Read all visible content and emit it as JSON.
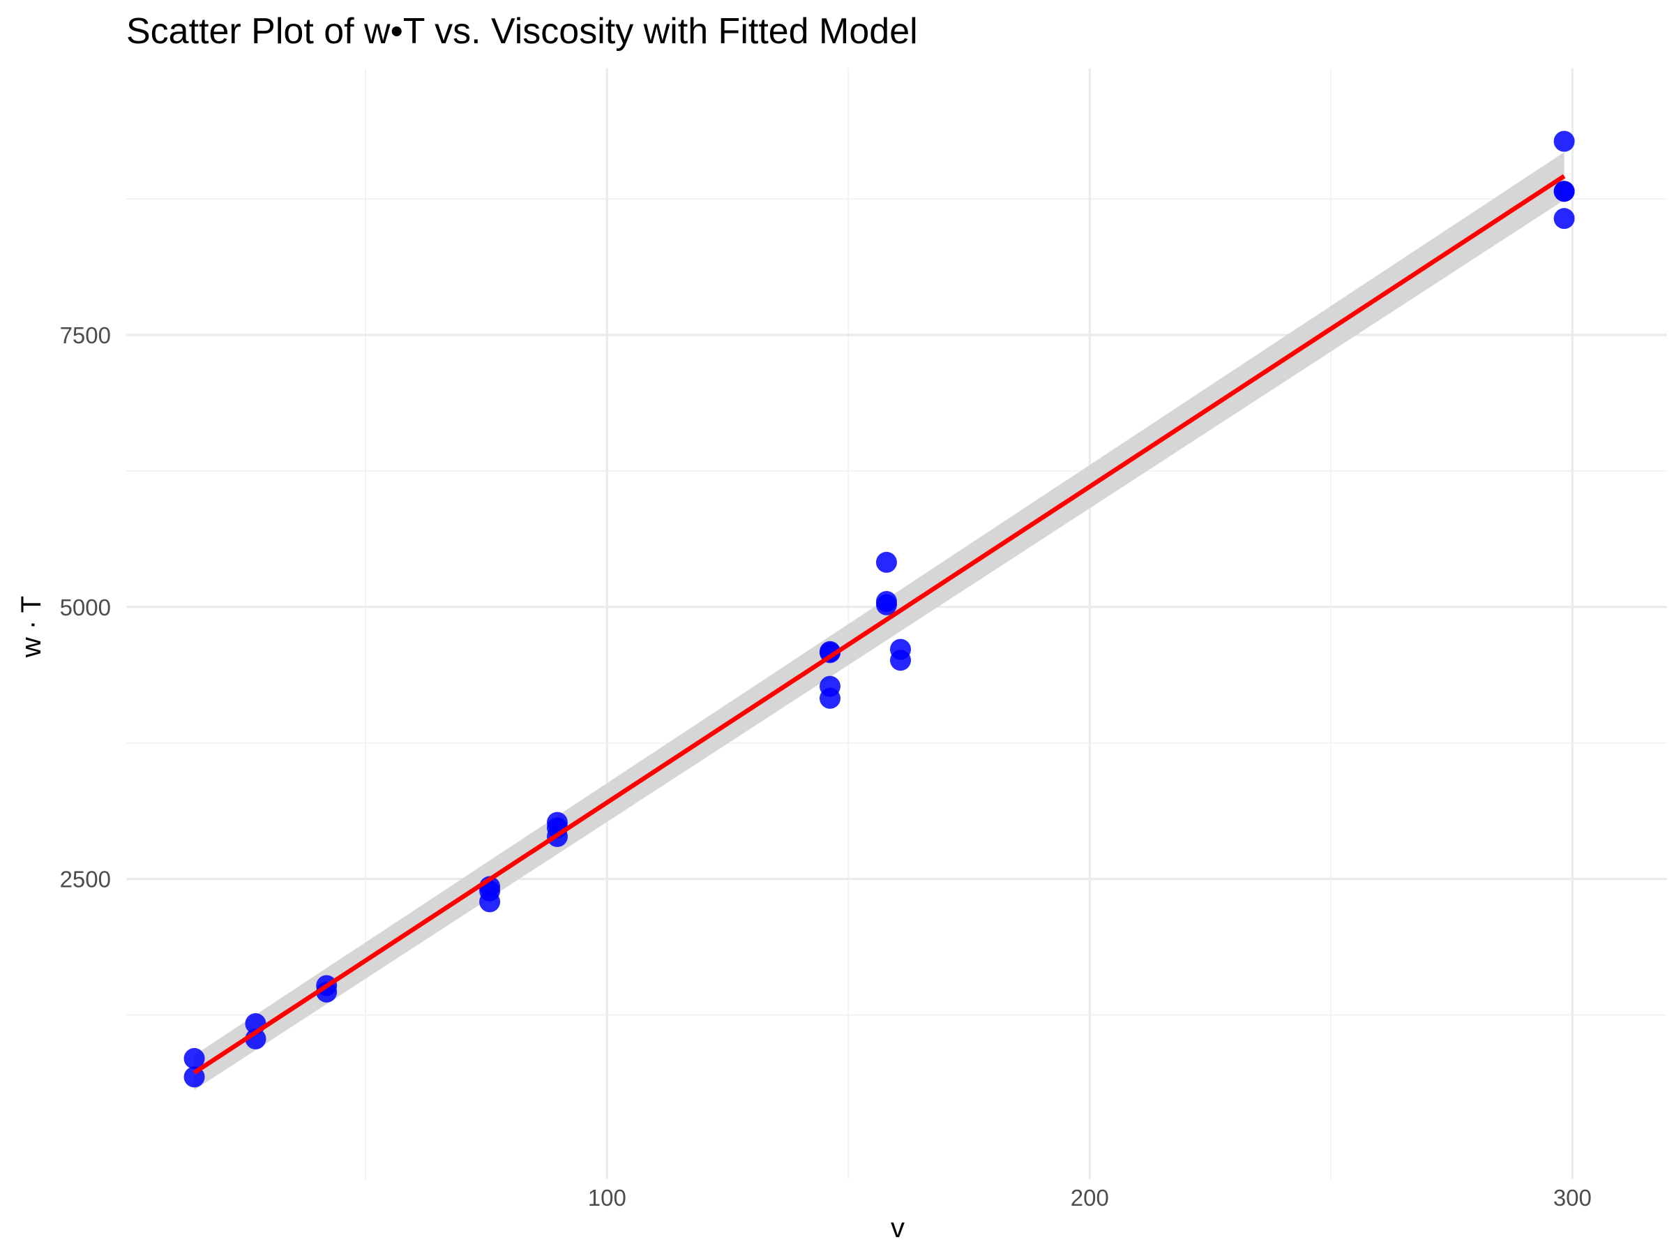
{
  "chart_data": {
    "type": "scatter",
    "title": "Scatter Plot of w•T vs. Viscosity with Fitted Model",
    "xlabel": "v",
    "ylabel": "w · T",
    "xlim": [
      0.4,
      319.6
    ],
    "ylim": [
      -260,
      9950
    ],
    "x_ticks": [
      100,
      200,
      300
    ],
    "x_tick_labels": [
      "100",
      "200",
      "300"
    ],
    "x_minor_ticks": [
      50,
      150,
      250
    ],
    "y_ticks": [
      2500,
      5000,
      7500
    ],
    "y_tick_labels": [
      "2500",
      "5000",
      "7500"
    ],
    "y_minor_ticks": [
      1250,
      3750,
      6250,
      8750
    ],
    "grid": true,
    "legend": "none",
    "series": [
      {
        "kind": "points",
        "color": "#0000ff",
        "x": [
          14.5,
          14.5,
          27.2,
          27.2,
          41.9,
          41.9,
          75.7,
          75.7,
          75.7,
          89.7,
          89.7,
          89.7,
          146.2,
          146.2,
          146.2,
          146.2,
          157.9,
          157.9,
          157.9,
          160.8,
          160.8,
          298.3,
          298.3,
          298.3,
          298.3
        ],
        "y": [
          850,
          680,
          1170,
          1030,
          1520,
          1460,
          2430,
          2390,
          2290,
          3020,
          2970,
          2890,
          4580,
          4270,
          4160,
          4590,
          5410,
          5050,
          5020,
          4610,
          4510,
          9280,
          8820,
          8820,
          8570
        ]
      },
      {
        "kind": "fitted-line",
        "color": "#ff0000",
        "band_color": "#d6d6d6",
        "x": [
          14.5,
          298.3
        ],
        "y": [
          720,
          8960
        ],
        "band_lower": [
          560,
          8740
        ],
        "band_upper": [
          880,
          9180
        ]
      }
    ]
  }
}
